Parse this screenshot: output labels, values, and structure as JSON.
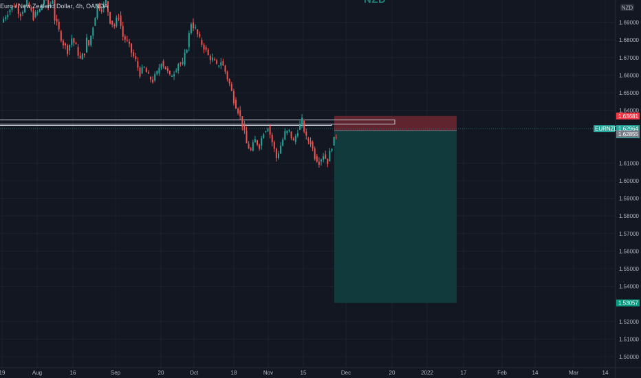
{
  "header": {
    "legend": "Euro / New Zealand Dollar, 4h, OANDA",
    "watermark": "NZD",
    "currency_badge": "NZD"
  },
  "price_scale": {
    "symbol_tag": "EURNZD",
    "last_price": "1.62964",
    "countdown": "07:06:34",
    "stop_tag": "1.63681",
    "entry_tag": "1.62855",
    "target_tag": "1.53057"
  },
  "colors": {
    "background": "#131722",
    "grid": "#1e222d",
    "up": "#26a69a",
    "down": "#ef5350",
    "stop_zone": "#7a2a33",
    "target_zone": "#123e40",
    "last_price_tag": "#26a69a",
    "stop_tag": "#f23645",
    "entry_tag": "#787b86",
    "target_tag": "#089981",
    "text": "#b2b5be"
  },
  "chart_data": {
    "type": "candlestick",
    "symbol": "EURNZD",
    "interval": "4h",
    "source": "OANDA",
    "ylim": [
      1.495,
      1.705
    ],
    "y_ticks": [
      "1.69000",
      "1.68000",
      "1.67000",
      "1.66000",
      "1.65000",
      "1.64000",
      "1.61000",
      "1.60000",
      "1.59000",
      "1.58000",
      "1.57000",
      "1.56000",
      "1.55000",
      "1.54000",
      "1.52000",
      "1.51000",
      "1.50000"
    ],
    "x_ticks": [
      "19",
      "Aug",
      "16",
      "Sep",
      "20",
      "Oct",
      "18",
      "Nov",
      "15",
      "Dec",
      "20",
      "2022",
      "17",
      "Feb",
      "14",
      "Mar",
      "14"
    ],
    "price_path": [
      [
        0,
        1.69
      ],
      [
        3,
        1.696
      ],
      [
        6,
        1.7
      ],
      [
        9,
        1.695
      ],
      [
        12,
        1.701
      ],
      [
        15,
        1.693
      ],
      [
        18,
        1.697
      ],
      [
        20,
        1.704
      ],
      [
        22,
        1.699
      ],
      [
        24,
        1.703
      ],
      [
        25,
        1.692
      ],
      [
        27,
        1.685
      ],
      [
        29,
        1.678
      ],
      [
        31,
        1.674
      ],
      [
        33,
        1.681
      ],
      [
        35,
        1.676
      ],
      [
        37,
        1.669
      ],
      [
        39,
        1.673
      ],
      [
        40,
        1.68
      ],
      [
        41,
        1.677
      ],
      [
        43,
        1.688
      ],
      [
        45,
        1.7
      ],
      [
        47,
        1.698
      ],
      [
        49,
        1.702
      ],
      [
        51,
        1.691
      ],
      [
        53,
        1.688
      ],
      [
        55,
        1.694
      ],
      [
        57,
        1.682
      ],
      [
        59,
        1.679
      ],
      [
        61,
        1.673
      ],
      [
        63,
        1.668
      ],
      [
        65,
        1.661
      ],
      [
        67,
        1.664
      ],
      [
        69,
        1.659
      ],
      [
        71,
        1.657
      ],
      [
        73,
        1.661
      ],
      [
        75,
        1.668
      ],
      [
        77,
        1.664
      ],
      [
        79,
        1.659
      ],
      [
        81,
        1.662
      ],
      [
        83,
        1.667
      ],
      [
        85,
        1.666
      ],
      [
        87,
        1.676
      ],
      [
        89,
        1.69
      ],
      [
        91,
        1.686
      ],
      [
        93,
        1.68
      ],
      [
        95,
        1.676
      ],
      [
        97,
        1.671
      ],
      [
        99,
        1.669
      ],
      [
        101,
        1.665
      ],
      [
        103,
        1.668
      ],
      [
        105,
        1.662
      ],
      [
        107,
        1.655
      ],
      [
        109,
        1.646
      ],
      [
        111,
        1.64
      ],
      [
        113,
        1.632
      ],
      [
        115,
        1.621
      ],
      [
        117,
        1.617
      ],
      [
        119,
        1.623
      ],
      [
        121,
        1.62
      ],
      [
        123,
        1.628
      ],
      [
        125,
        1.631
      ],
      [
        127,
        1.622
      ],
      [
        129,
        1.613
      ],
      [
        131,
        1.62
      ],
      [
        133,
        1.627
      ],
      [
        135,
        1.628
      ],
      [
        137,
        1.622
      ],
      [
        139,
        1.629
      ],
      [
        141,
        1.634
      ],
      [
        143,
        1.624
      ],
      [
        145,
        1.622
      ],
      [
        147,
        1.614
      ],
      [
        149,
        1.611
      ],
      [
        151,
        1.615
      ],
      [
        153,
        1.611
      ],
      [
        155,
        1.62
      ],
      [
        157,
        1.626
      ]
    ],
    "position": {
      "type": "short",
      "entry": 1.62855,
      "stop_loss": 1.63681,
      "take_profit": 1.53057,
      "start_x": 157,
      "end_x": 212
    },
    "resistance_line": 1.633,
    "last_price": 1.62964
  }
}
